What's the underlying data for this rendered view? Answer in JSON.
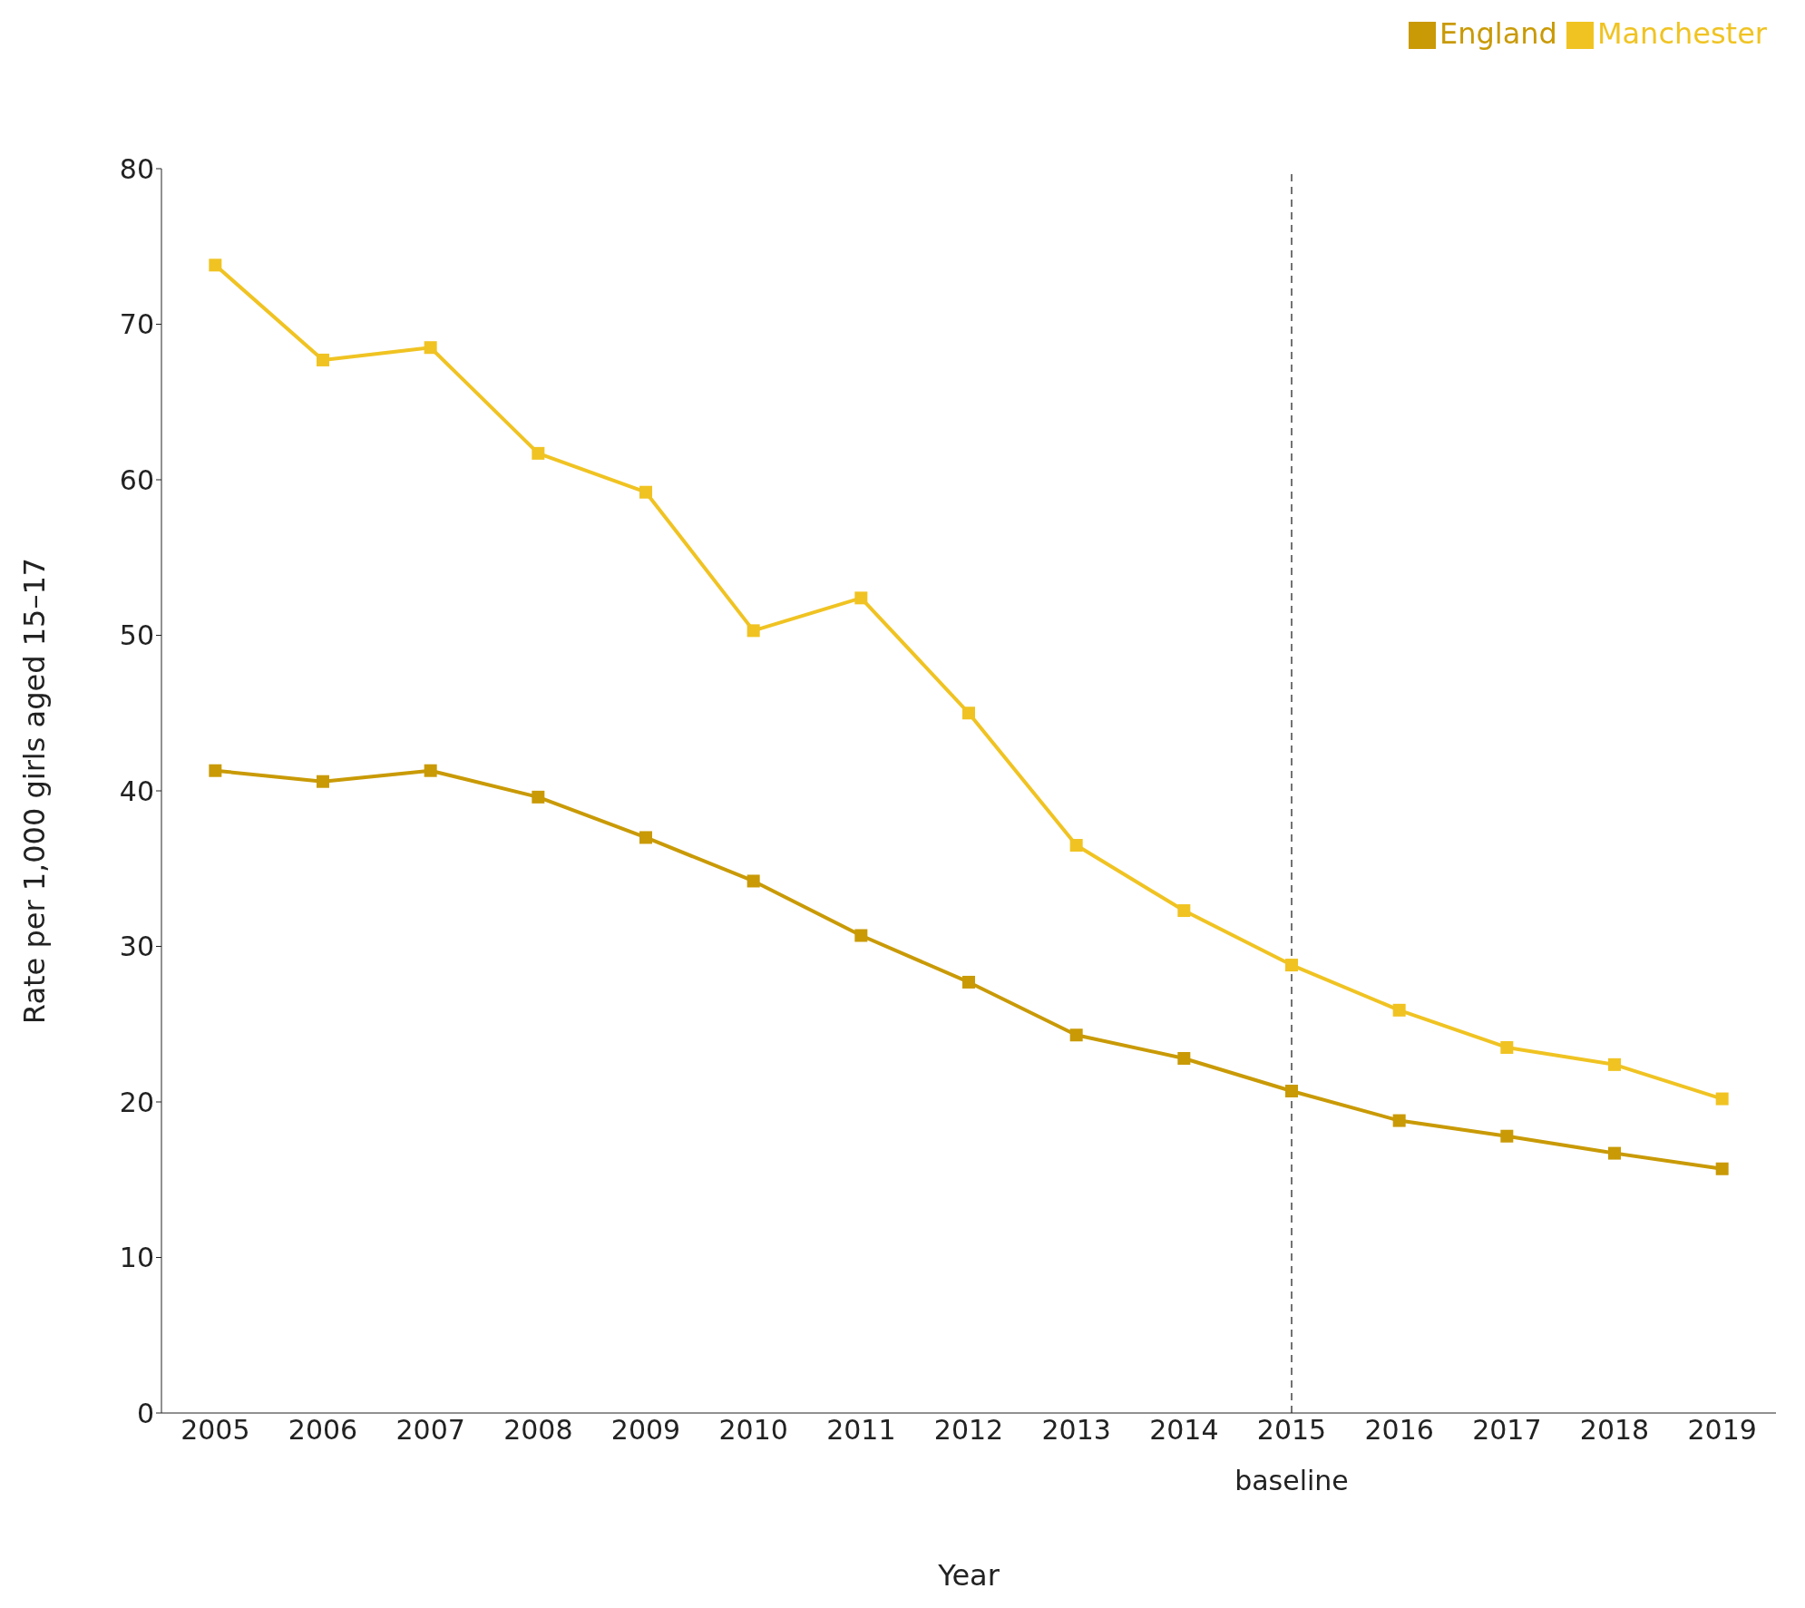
{
  "chart_data": {
    "type": "line",
    "xlabel": "Year",
    "ylabel": "Rate per 1,000 girls aged 15–17",
    "categories": [
      "2005",
      "2006",
      "2007",
      "2008",
      "2009",
      "2010",
      "2011",
      "2012",
      "2013",
      "2014",
      "2015",
      "2016",
      "2017",
      "2018",
      "2019"
    ],
    "series": [
      {
        "name": "England",
        "color": "#c99a06",
        "values": [
          41.3,
          40.6,
          41.3,
          39.6,
          37.0,
          34.2,
          30.7,
          27.7,
          24.3,
          22.8,
          20.7,
          18.8,
          17.8,
          16.7,
          15.7
        ]
      },
      {
        "name": "Manchester",
        "color": "#f0c322",
        "values": [
          73.8,
          67.7,
          68.5,
          61.7,
          59.2,
          50.3,
          52.4,
          45.0,
          36.5,
          32.3,
          28.8,
          25.9,
          23.5,
          22.4,
          20.2
        ]
      }
    ],
    "ylim": [
      0,
      80
    ],
    "yticks": [
      0,
      10,
      20,
      30,
      40,
      50,
      60,
      70,
      80
    ],
    "ref_lines": [
      {
        "axis": "x",
        "value": "2015",
        "label": "baseline",
        "color": "#444444",
        "line_style": "dashed"
      }
    ],
    "grid": false,
    "legend": "top right",
    "marker": "square",
    "line_style": "solid"
  }
}
